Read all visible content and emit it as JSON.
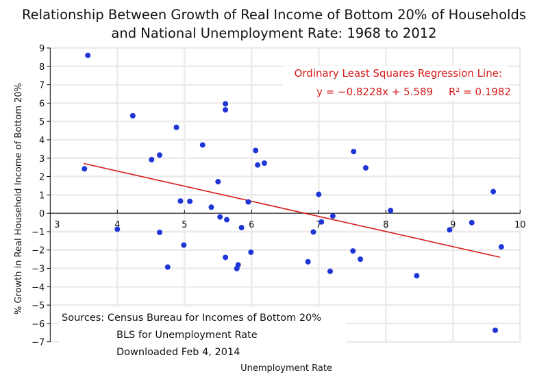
{
  "chart_data": {
    "type": "scatter",
    "title": [
      "Relationship Between Growth of Real Income of Bottom 20% of Households",
      "and National Unemployment Rate:  1968 to 2012"
    ],
    "xlabel": "Unemployment Rate",
    "ylabel": "% Growth in Real Household Income of Bottom 20%",
    "xlim": [
      3,
      10
    ],
    "ylim": [
      -7,
      9
    ],
    "xticks": [
      3,
      4,
      5,
      6,
      7,
      8,
      9,
      10
    ],
    "yticks": [
      9,
      8,
      7,
      6,
      5,
      4,
      3,
      2,
      1,
      0,
      -1,
      -2,
      -3,
      -4,
      -5,
      -6,
      -7
    ],
    "grid": true,
    "point_color": "#1f35d6",
    "line_color": "#d61a1a",
    "points": [
      [
        3.56,
        8.6
      ],
      [
        3.51,
        2.42
      ],
      [
        4.23,
        5.31
      ],
      [
        4.51,
        2.92
      ],
      [
        4.63,
        3.17
      ],
      [
        4.0,
        -0.87
      ],
      [
        4.63,
        -1.04
      ],
      [
        5.61,
        5.96
      ],
      [
        5.61,
        5.63
      ],
      [
        4.88,
        4.68
      ],
      [
        5.27,
        3.72
      ],
      [
        6.06,
        3.42
      ],
      [
        6.09,
        2.63
      ],
      [
        6.19,
        2.73
      ],
      [
        5.5,
        1.72
      ],
      [
        4.94,
        0.67
      ],
      [
        5.08,
        0.65
      ],
      [
        5.4,
        0.33
      ],
      [
        5.95,
        0.62
      ],
      [
        5.53,
        -0.2
      ],
      [
        5.63,
        -0.35
      ],
      [
        5.85,
        -0.78
      ],
      [
        4.99,
        -1.73
      ],
      [
        5.99,
        -2.12
      ],
      [
        5.61,
        -2.4
      ],
      [
        4.75,
        -2.93
      ],
      [
        5.8,
        -2.81
      ],
      [
        5.78,
        -3.01
      ],
      [
        7.52,
        3.36
      ],
      [
        7.7,
        2.47
      ],
      [
        7.0,
        1.03
      ],
      [
        8.07,
        0.15
      ],
      [
        7.21,
        -0.15
      ],
      [
        7.04,
        -0.47
      ],
      [
        6.92,
        -1.02
      ],
      [
        7.51,
        -2.05
      ],
      [
        7.62,
        -2.5
      ],
      [
        6.84,
        -2.64
      ],
      [
        7.17,
        -3.16
      ],
      [
        8.46,
        -3.4
      ],
      [
        9.6,
        1.18
      ],
      [
        9.28,
        -0.51
      ],
      [
        8.95,
        -0.9
      ],
      [
        9.72,
        -1.83
      ],
      [
        9.63,
        -6.37
      ]
    ],
    "regression": {
      "slope": -0.8228,
      "intercept": 5.589,
      "r2": 0.1982,
      "x_range": [
        3.5,
        9.7
      ]
    },
    "annotation": {
      "heading": "Ordinary Least Squares Regression Line:",
      "equation": "y = −0.8228x + 5.589",
      "r2_label": "R² = 0.1982"
    },
    "sources": [
      "Sources:  Census Bureau for Incomes of Bottom 20%",
      "BLS for Unemployment Rate",
      "Downloaded Feb 4, 2014"
    ]
  }
}
